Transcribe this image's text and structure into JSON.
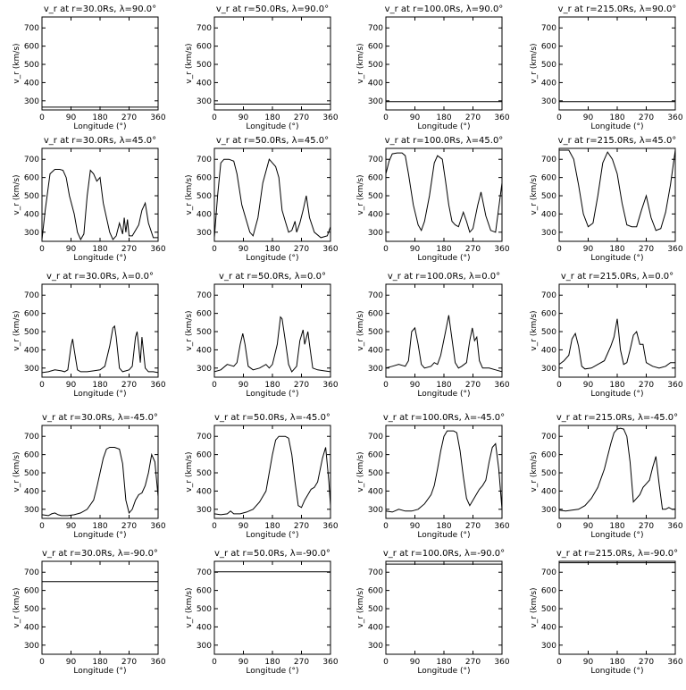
{
  "chart_data": [
    {
      "type": "line",
      "title": "v_r at r=30.0Rs, λ=90.0°",
      "xlabel": "Longitude (°)",
      "ylabel": "v_r (km/s)",
      "xlim": [
        0,
        360
      ],
      "ylim": [
        250,
        760
      ],
      "x": [
        0,
        360
      ],
      "values": [
        265,
        265
      ]
    },
    {
      "type": "line",
      "title": "v_r at r=50.0Rs, λ=90.0°",
      "xlabel": "Longitude (°)",
      "ylabel": "v_r (km/s)",
      "xlim": [
        0,
        360
      ],
      "ylim": [
        250,
        760
      ],
      "x": [
        0,
        360
      ],
      "values": [
        282,
        282
      ]
    },
    {
      "type": "line",
      "title": "v_r at r=100.0Rs, λ=90.0°",
      "xlabel": "Longitude (°)",
      "ylabel": "v_r (km/s)",
      "xlim": [
        0,
        360
      ],
      "ylim": [
        250,
        760
      ],
      "x": [
        0,
        360
      ],
      "values": [
        295,
        295
      ]
    },
    {
      "type": "line",
      "title": "v_r at r=215.0Rs, λ=90.0°",
      "xlabel": "Longitude (°)",
      "ylabel": "v_r (km/s)",
      "xlim": [
        0,
        360
      ],
      "ylim": [
        250,
        760
      ],
      "x": [
        0,
        360
      ],
      "values": [
        295,
        295
      ]
    },
    {
      "type": "line",
      "title": "v_r at r=30.0Rs, λ=45.0°",
      "xlabel": "Longitude (°)",
      "ylabel": "v_r (km/s)",
      "xlim": [
        0,
        360
      ],
      "ylim": [
        250,
        760
      ],
      "x": [
        0,
        10,
        25,
        40,
        55,
        65,
        75,
        85,
        100,
        110,
        120,
        130,
        140,
        150,
        160,
        170,
        180,
        190,
        200,
        210,
        220,
        230,
        240,
        250,
        255,
        260,
        265,
        270,
        280,
        300,
        310,
        320,
        330,
        345,
        360
      ],
      "values": [
        260,
        420,
        620,
        645,
        645,
        640,
        600,
        500,
        400,
        300,
        260,
        290,
        500,
        640,
        620,
        580,
        600,
        460,
        380,
        300,
        260,
        280,
        350,
        290,
        380,
        300,
        370,
        280,
        280,
        340,
        420,
        460,
        350,
        270,
        270
      ]
    },
    {
      "type": "line",
      "title": "v_r at r=50.0Rs, λ=45.0°",
      "xlabel": "Longitude (°)",
      "ylabel": "v_r (km/s)",
      "xlim": [
        0,
        360
      ],
      "ylim": [
        250,
        760
      ],
      "x": [
        0,
        10,
        20,
        30,
        45,
        60,
        70,
        85,
        100,
        110,
        120,
        135,
        150,
        170,
        180,
        190,
        200,
        210,
        220,
        230,
        240,
        250,
        255,
        265,
        275,
        285,
        295,
        310,
        330,
        350,
        360
      ],
      "values": [
        270,
        500,
        680,
        700,
        700,
        690,
        620,
        450,
        360,
        300,
        280,
        380,
        570,
        700,
        680,
        660,
        600,
        420,
        360,
        300,
        310,
        360,
        300,
        350,
        420,
        500,
        380,
        300,
        270,
        280,
        330
      ]
    },
    {
      "type": "line",
      "title": "v_r at r=100.0Rs, λ=45.0°",
      "xlabel": "Longitude (°)",
      "ylabel": "v_r (km/s)",
      "xlim": [
        0,
        360
      ],
      "ylim": [
        250,
        760
      ],
      "x": [
        0,
        10,
        20,
        35,
        50,
        60,
        70,
        85,
        100,
        110,
        120,
        135,
        150,
        160,
        175,
        185,
        195,
        205,
        215,
        225,
        240,
        250,
        260,
        270,
        285,
        295,
        310,
        325,
        340,
        360
      ],
      "values": [
        620,
        690,
        730,
        735,
        735,
        720,
        620,
        450,
        340,
        310,
        360,
        500,
        680,
        720,
        700,
        580,
        450,
        360,
        340,
        330,
        410,
        360,
        300,
        320,
        450,
        520,
        390,
        310,
        300,
        570
      ]
    },
    {
      "type": "line",
      "title": "v_r at r=215.0Rs, λ=45.0°",
      "xlabel": "Longitude (°)",
      "ylabel": "v_r (km/s)",
      "xlim": [
        0,
        360
      ],
      "ylim": [
        250,
        760
      ],
      "x": [
        0,
        15,
        30,
        45,
        60,
        75,
        90,
        105,
        120,
        135,
        150,
        165,
        180,
        195,
        210,
        225,
        240,
        255,
        270,
        285,
        300,
        315,
        330,
        345,
        360
      ],
      "values": [
        750,
        750,
        750,
        700,
        560,
        400,
        330,
        350,
        500,
        680,
        740,
        700,
        620,
        460,
        340,
        330,
        330,
        420,
        500,
        380,
        310,
        320,
        410,
        560,
        750
      ]
    },
    {
      "type": "line",
      "title": "v_r at r=30.0Rs, λ=0.0°",
      "xlabel": "Longitude (°)",
      "ylabel": "v_r (km/s)",
      "xlim": [
        0,
        360
      ],
      "ylim": [
        250,
        760
      ],
      "x": [
        0,
        20,
        40,
        60,
        70,
        80,
        90,
        95,
        100,
        110,
        120,
        140,
        160,
        180,
        195,
        210,
        220,
        225,
        230,
        240,
        250,
        260,
        270,
        280,
        290,
        295,
        300,
        305,
        310,
        320,
        330,
        345,
        360
      ],
      "values": [
        275,
        280,
        290,
        285,
        280,
        290,
        420,
        460,
        400,
        290,
        280,
        280,
        285,
        290,
        310,
        420,
        520,
        530,
        470,
        300,
        280,
        285,
        290,
        310,
        470,
        500,
        420,
        330,
        470,
        300,
        280,
        280,
        275
      ]
    },
    {
      "type": "line",
      "title": "v_r at r=50.0Rs, λ=0.0°",
      "xlabel": "Longitude (°)",
      "ylabel": "v_r (km/s)",
      "xlim": [
        0,
        360
      ],
      "ylim": [
        250,
        760
      ],
      "x": [
        0,
        20,
        40,
        60,
        70,
        80,
        88,
        95,
        105,
        120,
        140,
        160,
        170,
        180,
        195,
        205,
        210,
        220,
        230,
        240,
        255,
        265,
        275,
        280,
        290,
        295,
        305,
        320,
        340,
        360
      ],
      "values": [
        280,
        290,
        320,
        310,
        330,
        430,
        490,
        430,
        310,
        290,
        300,
        320,
        300,
        320,
        430,
        580,
        570,
        450,
        320,
        280,
        310,
        450,
        510,
        430,
        500,
        430,
        300,
        290,
        285,
        280
      ]
    },
    {
      "type": "line",
      "title": "v_r at r=100.0Rs, λ=0.0°",
      "xlabel": "Longitude (°)",
      "ylabel": "v_r (km/s)",
      "xlim": [
        0,
        360
      ],
      "ylim": [
        250,
        760
      ],
      "x": [
        0,
        20,
        40,
        60,
        70,
        80,
        90,
        100,
        110,
        120,
        140,
        150,
        160,
        170,
        185,
        195,
        205,
        215,
        225,
        235,
        250,
        260,
        268,
        275,
        282,
        290,
        300,
        320,
        340,
        360
      ],
      "values": [
        300,
        310,
        320,
        310,
        340,
        500,
        520,
        430,
        320,
        300,
        310,
        330,
        320,
        370,
        500,
        590,
        460,
        330,
        300,
        310,
        330,
        450,
        520,
        450,
        470,
        340,
        300,
        300,
        290,
        280
      ]
    },
    {
      "type": "line",
      "title": "v_r at r=215.0Rs, λ=0.0°",
      "xlabel": "Longitude (°)",
      "ylabel": "v_r (km/s)",
      "xlim": [
        0,
        360
      ],
      "ylim": [
        250,
        760
      ],
      "x": [
        0,
        15,
        30,
        40,
        50,
        60,
        70,
        80,
        100,
        120,
        140,
        150,
        160,
        170,
        180,
        185,
        190,
        200,
        210,
        220,
        230,
        240,
        250,
        260,
        270,
        290,
        310,
        330,
        345,
        360
      ],
      "values": [
        320,
        340,
        370,
        460,
        490,
        420,
        310,
        295,
        300,
        320,
        340,
        380,
        420,
        470,
        570,
        490,
        400,
        320,
        330,
        400,
        480,
        500,
        430,
        430,
        330,
        310,
        300,
        310,
        330,
        330
      ]
    },
    {
      "type": "line",
      "title": "v_r at r=30.0Rs, λ=-45.0°",
      "xlabel": "Longitude (°)",
      "ylabel": "v_r (km/s)",
      "xlim": [
        0,
        360
      ],
      "ylim": [
        250,
        760
      ],
      "x": [
        0,
        20,
        30,
        40,
        50,
        60,
        80,
        100,
        120,
        140,
        160,
        170,
        180,
        190,
        200,
        210,
        225,
        240,
        250,
        260,
        270,
        280,
        290,
        300,
        310,
        320,
        330,
        340,
        350,
        360
      ],
      "values": [
        270,
        265,
        275,
        280,
        270,
        265,
        265,
        270,
        280,
        300,
        350,
        420,
        500,
        580,
        630,
        640,
        640,
        630,
        550,
        350,
        280,
        300,
        350,
        380,
        390,
        430,
        500,
        600,
        560,
        370
      ]
    },
    {
      "type": "line",
      "title": "v_r at r=50.0Rs, λ=-45.0°",
      "xlabel": "Longitude (°)",
      "ylabel": "v_r (km/s)",
      "xlim": [
        0,
        360
      ],
      "ylim": [
        250,
        760
      ],
      "x": [
        0,
        20,
        40,
        50,
        60,
        80,
        100,
        120,
        140,
        160,
        170,
        180,
        190,
        200,
        210,
        220,
        230,
        240,
        250,
        260,
        270,
        280,
        290,
        300,
        310,
        320,
        335,
        345,
        355,
        360
      ],
      "values": [
        275,
        270,
        275,
        290,
        275,
        275,
        285,
        300,
        340,
        400,
        500,
        600,
        680,
        700,
        700,
        700,
        690,
        600,
        450,
        320,
        310,
        350,
        380,
        410,
        420,
        450,
        580,
        640,
        450,
        320
      ]
    },
    {
      "type": "line",
      "title": "v_r at r=100.0Rs, λ=-45.0°",
      "xlabel": "Longitude (°)",
      "ylabel": "v_r (km/s)",
      "xlim": [
        0,
        360
      ],
      "ylim": [
        250,
        760
      ],
      "x": [
        0,
        20,
        40,
        60,
        80,
        100,
        120,
        140,
        150,
        160,
        170,
        180,
        190,
        200,
        210,
        220,
        230,
        240,
        250,
        260,
        270,
        280,
        290,
        300,
        310,
        320,
        330,
        340,
        350,
        360
      ],
      "values": [
        290,
        285,
        300,
        290,
        290,
        300,
        330,
        380,
        430,
        520,
        620,
        700,
        730,
        730,
        730,
        720,
        620,
        480,
        360,
        320,
        350,
        380,
        410,
        430,
        460,
        560,
        640,
        660,
        520,
        300
      ]
    },
    {
      "type": "line",
      "title": "v_r at r=215.0Rs, λ=-45.0°",
      "xlabel": "Longitude (°)",
      "ylabel": "v_r (km/s)",
      "xlim": [
        0,
        360
      ],
      "ylim": [
        250,
        760
      ],
      "x": [
        0,
        20,
        40,
        60,
        80,
        100,
        120,
        140,
        160,
        170,
        180,
        190,
        200,
        210,
        220,
        230,
        240,
        250,
        260,
        270,
        280,
        290,
        300,
        310,
        320,
        330,
        340,
        350,
        360
      ],
      "values": [
        295,
        290,
        295,
        300,
        320,
        360,
        420,
        520,
        660,
        720,
        740,
        745,
        740,
        700,
        560,
        340,
        360,
        380,
        420,
        440,
        460,
        530,
        590,
        440,
        300,
        300,
        310,
        300,
        300
      ]
    },
    {
      "type": "line",
      "title": "v_r at r=30.0Rs, λ=-90.0°",
      "xlabel": "Longitude (°)",
      "ylabel": "v_r (km/s)",
      "xlim": [
        0,
        360
      ],
      "ylim": [
        250,
        760
      ],
      "x": [
        0,
        360
      ],
      "values": [
        648,
        648
      ]
    },
    {
      "type": "line",
      "title": "v_r at r=50.0Rs, λ=-90.0°",
      "xlabel": "Longitude (°)",
      "ylabel": "v_r (km/s)",
      "xlim": [
        0,
        360
      ],
      "ylim": [
        250,
        760
      ],
      "x": [
        0,
        360
      ],
      "values": [
        702,
        702
      ]
    },
    {
      "type": "line",
      "title": "v_r at r=100.0Rs, λ=-90.0°",
      "xlabel": "Longitude (°)",
      "ylabel": "v_r (km/s)",
      "xlim": [
        0,
        360
      ],
      "ylim": [
        250,
        760
      ],
      "x": [
        0,
        360
      ],
      "values": [
        745,
        745
      ]
    },
    {
      "type": "line",
      "title": "v_r at r=215.0Rs, λ=-90.0°",
      "xlabel": "Longitude (°)",
      "ylabel": "v_r (km/s)",
      "xlim": [
        0,
        360
      ],
      "ylim": [
        250,
        760
      ],
      "x": [
        0,
        360
      ],
      "values": [
        752,
        752
      ]
    }
  ],
  "axes": {
    "xticks": [
      0,
      90,
      180,
      270,
      360
    ],
    "yticks": [
      300,
      400,
      500,
      600,
      700
    ],
    "line_color": "#000000"
  }
}
